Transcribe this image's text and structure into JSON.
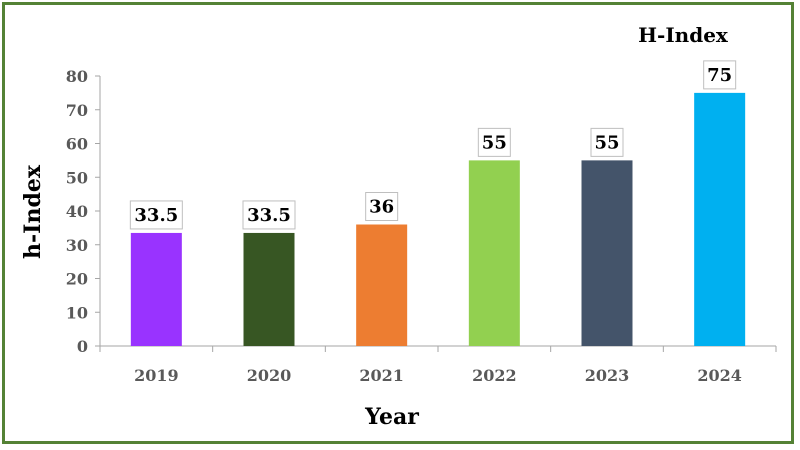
{
  "chart_data": {
    "type": "bar",
    "title": "H-Index",
    "xlabel": "Year",
    "ylabel": "h-Index",
    "categories": [
      "2019",
      "2020",
      "2021",
      "2022",
      "2023",
      "2024"
    ],
    "values": [
      33.5,
      33.5,
      36,
      55,
      55,
      75
    ],
    "data_labels": [
      "33.5",
      "33.5",
      "36",
      "55",
      "55",
      "75"
    ],
    "colors": [
      "#9933FF",
      "#375623",
      "#ED7D31",
      "#92D050",
      "#44546A",
      "#00B0F0"
    ],
    "ylim": [
      0,
      80
    ],
    "yticks": [
      0,
      10,
      20,
      30,
      40,
      50,
      60,
      70,
      80
    ],
    "grid": false,
    "legend": "none"
  },
  "style": {
    "frame_color": "#548235",
    "axis_color": "#A6A6A6",
    "tick_label_color": "#595959",
    "label_box_border": "#BFBFBF"
  }
}
